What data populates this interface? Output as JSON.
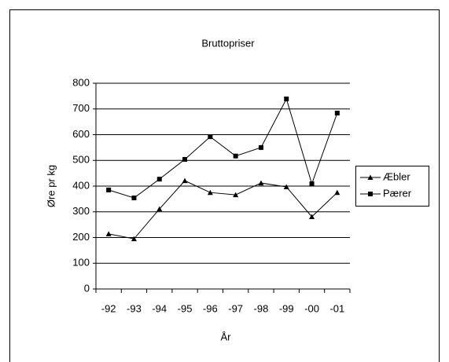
{
  "chart_data": {
    "type": "line",
    "title": "Bruttopriser",
    "x_label": "År",
    "y_label": "Øre pr kg",
    "categories": [
      "-92",
      "-93",
      "-94",
      "-95",
      "-96",
      "-97",
      "-98",
      "-99",
      "-00",
      "-01"
    ],
    "series": [
      {
        "name": "Æbler",
        "color": "#000000",
        "marker": "triangle",
        "values": [
          214,
          195,
          311,
          421,
          375,
          366,
          412,
          397,
          281,
          375
        ]
      },
      {
        "name": "Pærer",
        "color": "#000000",
        "marker": "square",
        "values": [
          385,
          354,
          427,
          504,
          592,
          517,
          550,
          739,
          409,
          684
        ]
      }
    ],
    "ylim": [
      0,
      800
    ],
    "yticks": [
      0,
      100,
      200,
      300,
      400,
      500,
      600,
      700,
      800
    ],
    "grid": true,
    "legend": "right"
  }
}
